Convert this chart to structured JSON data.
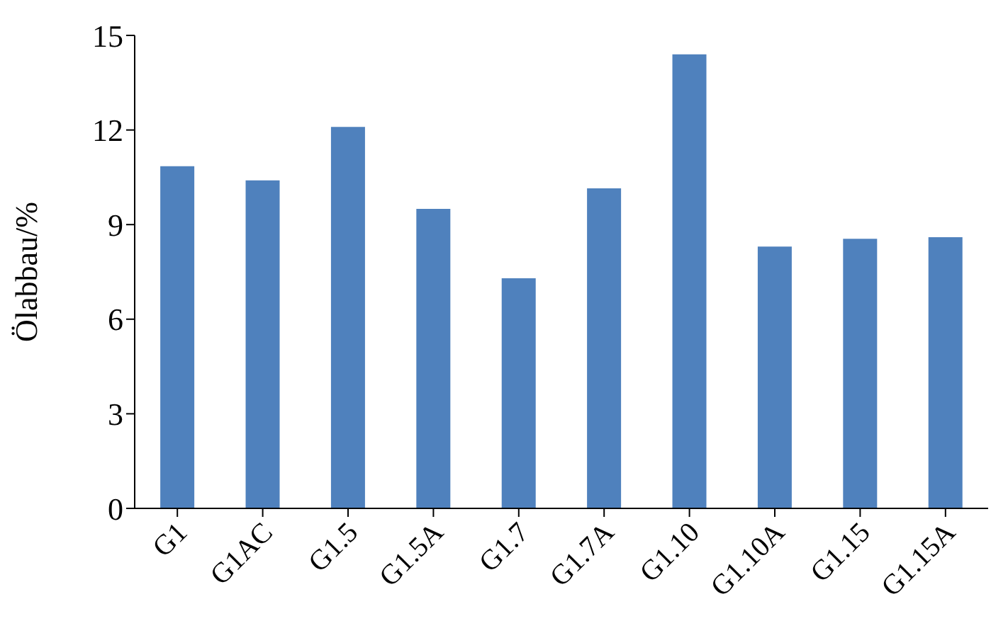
{
  "chart_data": {
    "type": "bar",
    "ylabel": "Ölabbau/%",
    "categories": [
      "G1",
      "G1AC",
      "G1.5",
      "G1.5A",
      "G1.7",
      "G1.7A",
      "G1.10",
      "G1.10A",
      "G1.15",
      "G1.15A"
    ],
    "values": [
      10.85,
      10.4,
      12.1,
      9.5,
      7.3,
      10.15,
      14.4,
      8.3,
      8.55,
      8.6
    ],
    "color": "#4f81bd",
    "ylim": [
      0,
      15
    ],
    "yticks": [
      0,
      3,
      6,
      9,
      12,
      15
    ],
    "grid": false,
    "legend": false
  }
}
